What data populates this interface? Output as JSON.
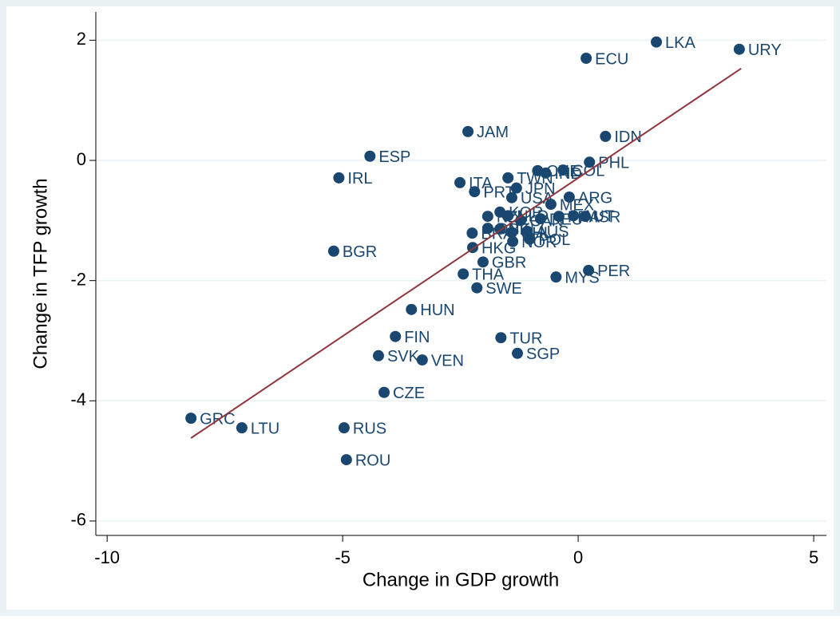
{
  "chart_data": {
    "type": "scatter",
    "x_label": "Change in GDP growth",
    "y_label": "Change in TFP growth",
    "xlim": [
      -10.24,
      5.27
    ],
    "xticks": [
      -10,
      -5,
      0,
      5
    ],
    "ylim": [
      -6.24,
      2.47
    ],
    "yticks": [
      -6,
      -4,
      -2,
      0,
      2
    ],
    "grid": true,
    "color": "#1a476f",
    "point_labels": [
      "GRC",
      "LTU",
      "RUS",
      "ROU",
      "CZE",
      "SVK",
      "VEN",
      "FIN",
      "HUN",
      "TUR",
      "SGP",
      "SWE",
      "THA",
      "GBR",
      "MYS",
      "PER",
      "HKG",
      "BGR",
      "IRL",
      "ESP",
      "JAM",
      "ITA",
      "PRT",
      "TWN",
      "JPN",
      "USA",
      "ECU",
      "LKA",
      "URY",
      "IDN",
      "PHL",
      "CHE",
      "IND",
      "COL",
      "ARG",
      "MEX",
      "ISR",
      "KOR",
      "NZL",
      "NLD",
      "CAN",
      "DEU",
      "FRA",
      "AUT",
      "DNK",
      "BEL",
      "AUS",
      "BRA",
      "CHL",
      "NOR",
      "POL"
    ],
    "x": [
      -8.22,
      -7.14,
      -4.97,
      -4.92,
      -4.12,
      -4.24,
      -3.31,
      -3.88,
      -3.54,
      -1.64,
      -1.29,
      -2.15,
      -2.44,
      -2.02,
      -0.47,
      0.22,
      -2.24,
      -5.19,
      -5.08,
      -4.42,
      -2.34,
      -2.51,
      -2.2,
      -1.49,
      -1.31,
      -1.41,
      0.17,
      1.66,
      3.42,
      0.58,
      0.24,
      -0.86,
      -0.69,
      -0.32,
      -0.19,
      -0.58,
      0.15,
      -1.66,
      -1.92,
      -1.49,
      -1.22,
      -0.8,
      -0.41,
      -0.1,
      -1.92,
      -1.66,
      -1.08,
      -2.25,
      -1.41,
      -1.39,
      -1.03
    ],
    "y": [
      -4.29,
      -4.45,
      -4.45,
      -4.98,
      -3.86,
      -3.25,
      -3.32,
      -2.93,
      -2.48,
      -2.95,
      -3.21,
      -2.12,
      -1.89,
      -1.69,
      -1.94,
      -1.83,
      -1.45,
      -1.51,
      -0.29,
      0.07,
      0.48,
      -0.37,
      -0.52,
      -0.29,
      -0.46,
      -0.62,
      1.7,
      1.97,
      1.85,
      0.4,
      -0.03,
      -0.17,
      -0.21,
      -0.16,
      -0.61,
      -0.73,
      -0.93,
      -0.86,
      -0.93,
      -0.92,
      -1.0,
      -0.97,
      -0.93,
      -0.92,
      -1.13,
      -1.14,
      -1.18,
      -1.21,
      -1.2,
      -1.35,
      -1.31
    ],
    "fit_line": {
      "color": "#90353b",
      "x": [
        -8.22,
        3.46
      ],
      "y": [
        -4.62,
        1.53
      ]
    }
  }
}
